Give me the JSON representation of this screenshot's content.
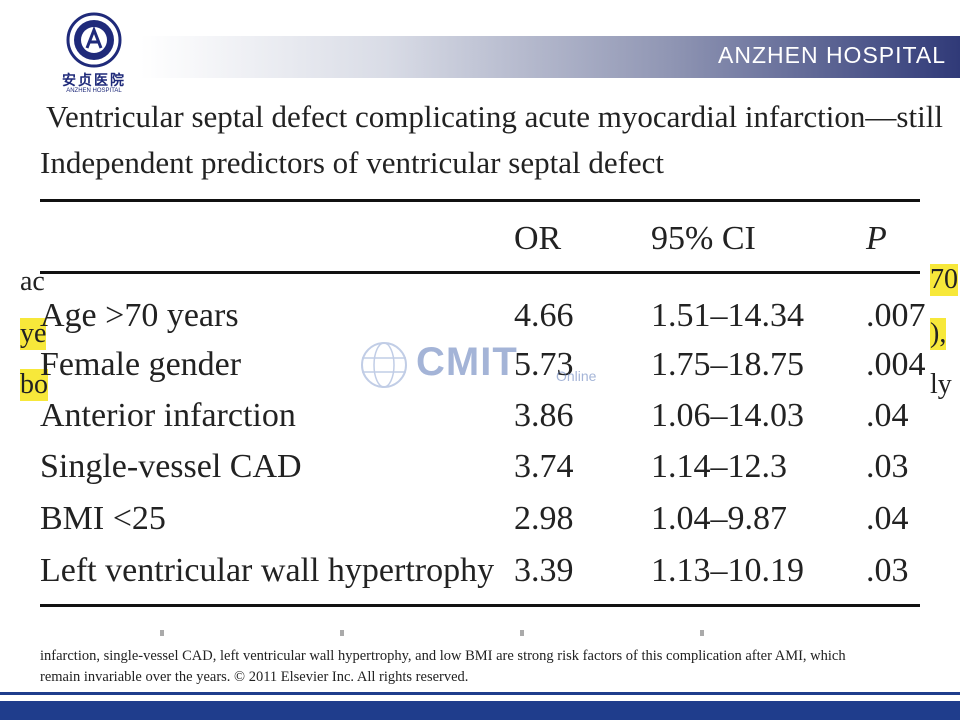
{
  "header": {
    "hospital_name": "ANZHEN HOSPITAL",
    "logo_chinese": "安贞医院",
    "logo_english": "ANZHEN HOSPITAL"
  },
  "article": {
    "title": "Ventricular septal defect complicating acute myocardial infarction—still",
    "table_caption": "Independent predictors of ventricular septal defect",
    "columns": [
      "",
      "OR",
      "95% CI",
      "P"
    ],
    "rows": [
      [
        "Age >70 years",
        "4.66",
        "1.51–14.34",
        ".007"
      ],
      [
        "Female gender",
        "5.73",
        "1.75–18.75",
        ".004"
      ],
      [
        "Anterior infarction",
        "3.86",
        "1.06–14.03",
        ".04"
      ],
      [
        "Single-vessel CAD",
        "3.74",
        "1.14–12.3",
        ".03"
      ],
      [
        "BMI <25",
        "2.98",
        "1.04–9.87",
        ".04"
      ],
      [
        "Left ventricular wall hypertrophy",
        "3.39",
        "1.13–10.19",
        ".03"
      ]
    ],
    "abstract_lines": [
      "infarction, single-vessel CAD, left ventricular wall hypertrophy, and low BMI are strong risk factors of this complication after AMI, which",
      "remain invariable over the years. © 2011 Elsevier Inc. All rights reserved."
    ]
  },
  "background_fragments": {
    "left": [
      "ac",
      "ye",
      "bo"
    ],
    "right": [
      "70",
      "),",
      "ly"
    ]
  },
  "watermark": {
    "text": "CMIT",
    "sub": "Online"
  },
  "colors": {
    "brand_blue": "#1f3d8c",
    "highlight": "#f7e83a"
  }
}
